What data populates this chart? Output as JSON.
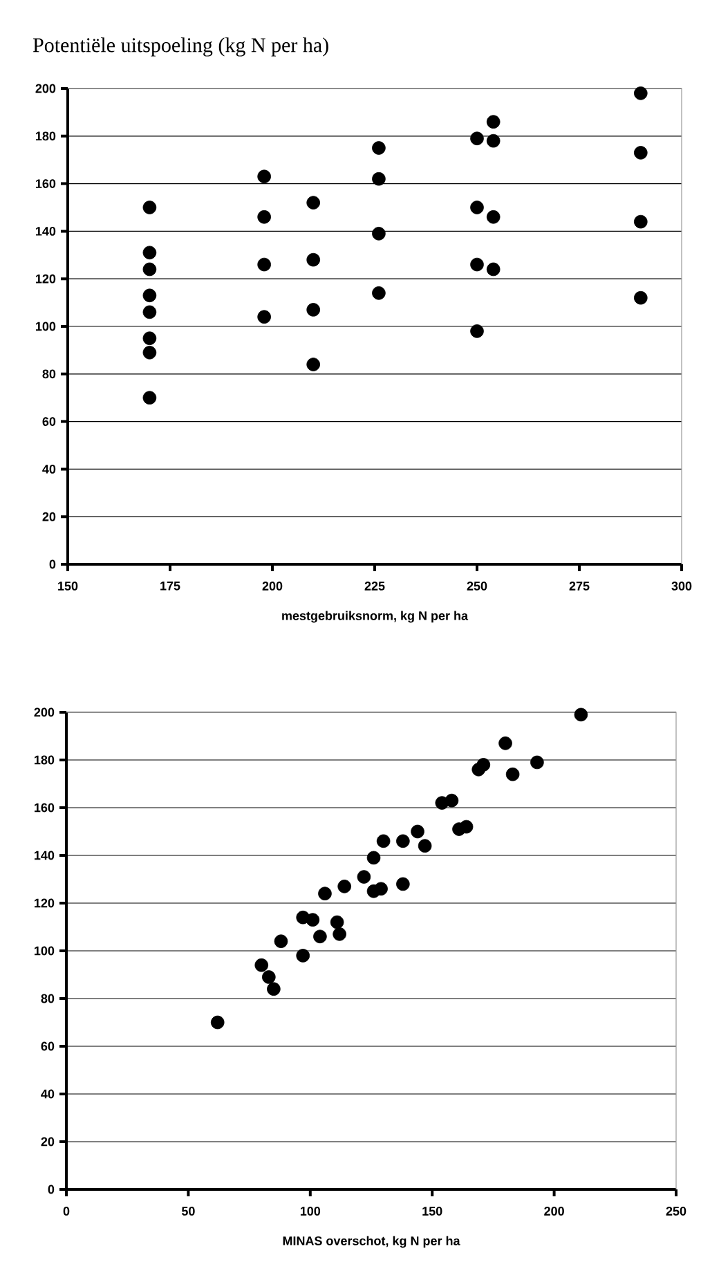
{
  "chart_data": [
    {
      "type": "scatter",
      "title": "Potentiële uitspoeling (kg N per ha)",
      "xlabel": "mestgebruiksnorm, kg N per ha",
      "x": [
        170,
        170,
        170,
        170,
        170,
        170,
        170,
        170,
        198,
        198,
        198,
        198,
        210,
        210,
        210,
        210,
        226,
        226,
        226,
        226,
        250,
        250,
        250,
        250,
        254,
        254,
        254,
        254,
        290,
        290,
        290,
        290
      ],
      "values": [
        150,
        131,
        124,
        113,
        106,
        95,
        89,
        70,
        163,
        146,
        126,
        104,
        152,
        128,
        107,
        84,
        175,
        162,
        139,
        114,
        179,
        150,
        126,
        98,
        186,
        178,
        146,
        124,
        198,
        173,
        144,
        112
      ],
      "color": "#000000",
      "marker": "circle",
      "grid": "y",
      "xlim": [
        150,
        300
      ],
      "xticks": [
        150,
        175,
        200,
        225,
        250,
        275,
        300
      ],
      "ylim": [
        0,
        200
      ],
      "yticks": [
        0,
        20,
        40,
        60,
        80,
        100,
        120,
        140,
        160,
        180,
        200
      ]
    },
    {
      "type": "scatter",
      "xlabel": "MINAS overschot, kg N per ha",
      "x": [
        62,
        80,
        83,
        85,
        88,
        97,
        97,
        101,
        104,
        106,
        111,
        112,
        114,
        122,
        126,
        126,
        129,
        130,
        138,
        138,
        144,
        147,
        154,
        158,
        161,
        164,
        169,
        171,
        180,
        183,
        193,
        211
      ],
      "values": [
        70,
        94,
        89,
        84,
        104,
        98,
        114,
        113,
        106,
        124,
        112,
        107,
        127,
        131,
        139,
        125,
        126,
        146,
        146,
        128,
        150,
        144,
        162,
        163,
        151,
        152,
        176,
        178,
        187,
        174,
        179,
        199
      ],
      "color": "#000000",
      "marker": "circle",
      "grid": "y",
      "xlim": [
        0,
        250
      ],
      "xticks": [
        0,
        50,
        100,
        150,
        200,
        250
      ],
      "ylim": [
        0,
        200
      ],
      "yticks": [
        0,
        20,
        40,
        60,
        80,
        100,
        120,
        140,
        160,
        180,
        200
      ]
    }
  ]
}
